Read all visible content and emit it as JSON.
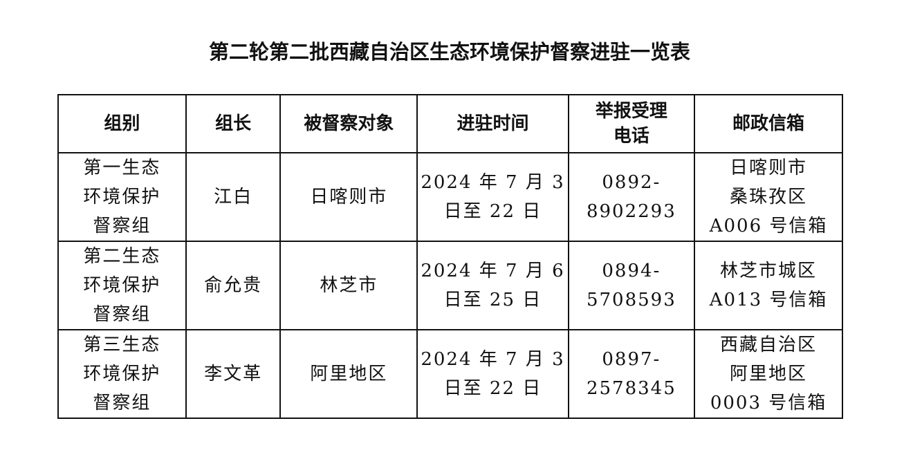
{
  "title": "第二轮第二批西藏自治区生态环境保护督察进驻一览表",
  "table": {
    "headers": [
      [
        "组别"
      ],
      [
        "组长"
      ],
      [
        "被督察对象"
      ],
      [
        "进驻时间"
      ],
      [
        "举报受理",
        "电话"
      ],
      [
        "邮政信箱"
      ]
    ],
    "rows": [
      [
        [
          "第一生态",
          "环境保护",
          "督察组"
        ],
        [
          "江白"
        ],
        [
          "日喀则市"
        ],
        [
          "2024 年 7 月 3",
          "日至 22 日"
        ],
        [
          "0892-",
          "8902293"
        ],
        [
          "日喀则市",
          "桑珠孜区",
          "A006 号信箱"
        ]
      ],
      [
        [
          "第二生态",
          "环境保护",
          "督察组"
        ],
        [
          "俞允贵"
        ],
        [
          "林芝市"
        ],
        [
          "2024 年 7 月 6",
          "日至 25 日"
        ],
        [
          "0894-",
          "5708593"
        ],
        [
          "林芝市城区",
          "A013 号信箱"
        ]
      ],
      [
        [
          "第三生态",
          "环境保护",
          "督察组"
        ],
        [
          "李文革"
        ],
        [
          "阿里地区"
        ],
        [
          "2024 年 7 月 3",
          "日至 22 日"
        ],
        [
          "0897-",
          "2578345"
        ],
        [
          "西藏自治区",
          "阿里地区",
          "0003 号信箱"
        ]
      ]
    ]
  }
}
